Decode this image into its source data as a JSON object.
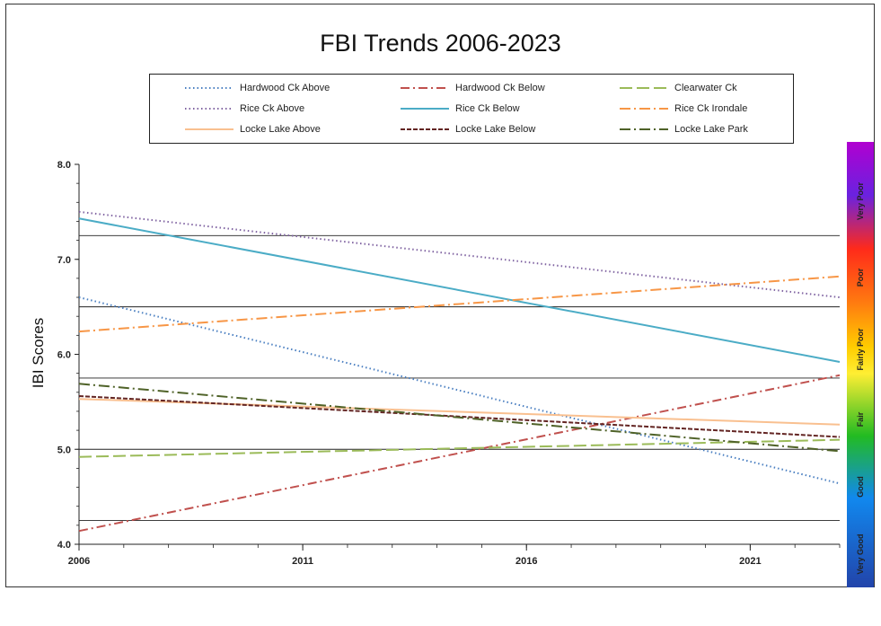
{
  "chart_data": {
    "type": "line",
    "title": "FBI Trends 2006-2023",
    "ylabel": "IBI Scores",
    "xlabel": "",
    "xlim": [
      2006,
      2023
    ],
    "ylim": [
      4.0,
      8.0
    ],
    "x_ticks": [
      "2006",
      "2011",
      "2016",
      "2021"
    ],
    "y_ticks": [
      "4.0",
      "5.0",
      "6.0",
      "7.0",
      "8.0"
    ],
    "threshold_lines": [
      4.25,
      5.0,
      5.75,
      6.5,
      7.25
    ],
    "legend_placement": "top-center",
    "series": [
      {
        "name": "Hardwood Ck Above",
        "x": [
          2006,
          2023
        ],
        "y": [
          6.6,
          4.64
        ],
        "color": "#4a7fc1",
        "dash": "1.5,3"
      },
      {
        "name": "Hardwood Ck Below",
        "x": [
          2006,
          2023
        ],
        "y": [
          4.14,
          5.78
        ],
        "color": "#c0504d",
        "dash": "10,4,2,4"
      },
      {
        "name": "Clearwater Ck",
        "x": [
          2006,
          2023
        ],
        "y": [
          4.92,
          5.1
        ],
        "color": "#9bbb59",
        "dash": "14,5"
      },
      {
        "name": "Rice Ck Above",
        "x": [
          2006,
          2023
        ],
        "y": [
          7.5,
          6.6
        ],
        "color": "#8064a2",
        "dash": "1.5,3"
      },
      {
        "name": "Rice Ck Below",
        "x": [
          2006,
          2023
        ],
        "y": [
          7.43,
          5.92
        ],
        "color": "#4bacc6",
        "dash": ""
      },
      {
        "name": "Rice Ck Irondale",
        "x": [
          2006,
          2023
        ],
        "y": [
          6.24,
          6.82
        ],
        "color": "#f79646",
        "dash": "12,4,2,4"
      },
      {
        "name": "Locke Lake Above",
        "x": [
          2006,
          2023
        ],
        "y": [
          5.53,
          5.26
        ],
        "color": "#f9c090",
        "dash": ""
      },
      {
        "name": "Locke Lake Below",
        "x": [
          2006,
          2023
        ],
        "y": [
          5.56,
          5.13
        ],
        "color": "#632523",
        "dash": "5,2"
      },
      {
        "name": "Locke Lake Park",
        "x": [
          2006,
          2023
        ],
        "y": [
          5.69,
          4.98
        ],
        "color": "#4f6228",
        "dash": "12,4,2,4"
      }
    ],
    "grid": false
  },
  "scale_bar": {
    "labels": [
      "Very Poor",
      "Poor",
      "Fairly Poor",
      "Fair",
      "Good",
      "Very Good"
    ]
  }
}
